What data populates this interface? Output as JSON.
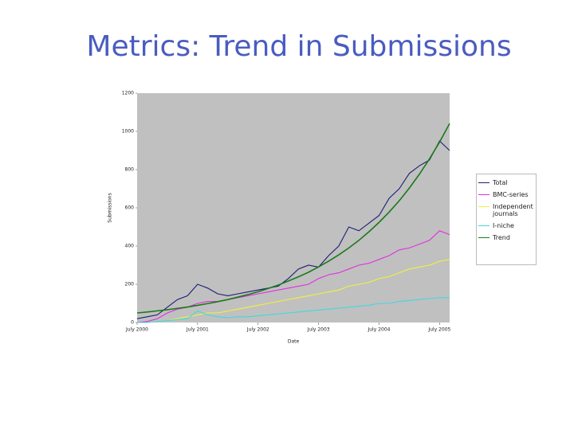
{
  "title": "Metrics: Trend in Submissions",
  "chart_data": {
    "type": "line",
    "x_label": "Date",
    "y_label": "Submissions",
    "x": [
      "2000-07",
      "2000-09",
      "2000-11",
      "2001-01",
      "2001-03",
      "2001-05",
      "2001-07",
      "2001-09",
      "2001-11",
      "2002-01",
      "2002-03",
      "2002-05",
      "2002-07",
      "2002-09",
      "2002-11",
      "2003-01",
      "2003-03",
      "2003-05",
      "2003-07",
      "2003-09",
      "2003-11",
      "2004-01",
      "2004-03",
      "2004-05",
      "2004-07",
      "2004-09",
      "2004-11",
      "2005-01",
      "2005-03",
      "2005-05",
      "2005-07",
      "2005-09"
    ],
    "series": [
      {
        "name": "Total",
        "color": "#1c1c78",
        "values": [
          20,
          30,
          40,
          80,
          120,
          140,
          200,
          180,
          150,
          140,
          150,
          160,
          170,
          180,
          190,
          230,
          280,
          300,
          290,
          350,
          400,
          500,
          480,
          520,
          560,
          650,
          700,
          780,
          820,
          850,
          950,
          900
        ]
      },
      {
        "name": "BMC-series",
        "color": "#e030e0",
        "values": [
          0,
          5,
          20,
          50,
          70,
          80,
          100,
          110,
          110,
          120,
          130,
          140,
          150,
          160,
          170,
          180,
          190,
          200,
          230,
          250,
          260,
          280,
          300,
          310,
          330,
          350,
          380,
          390,
          410,
          430,
          480,
          460
        ]
      },
      {
        "name": "Independent journals",
        "color": "#f0f040",
        "values": [
          0,
          0,
          5,
          10,
          20,
          30,
          40,
          50,
          50,
          60,
          70,
          80,
          90,
          100,
          110,
          120,
          130,
          140,
          150,
          160,
          170,
          190,
          200,
          210,
          230,
          240,
          260,
          280,
          290,
          300,
          320,
          330
        ]
      },
      {
        "name": "I-niche",
        "color": "#40d8e0",
        "values": [
          0,
          0,
          5,
          10,
          15,
          20,
          60,
          40,
          30,
          25,
          30,
          30,
          35,
          40,
          45,
          50,
          55,
          60,
          65,
          70,
          75,
          80,
          85,
          90,
          100,
          100,
          110,
          115,
          120,
          125,
          130,
          130
        ]
      },
      {
        "name": "Trend",
        "color": "#1a7a1a",
        "values": [
          50,
          55,
          61,
          67,
          74,
          81,
          90,
          99,
          109,
          120,
          133,
          146,
          161,
          178,
          196,
          217,
          239,
          263,
          291,
          321,
          354,
          390,
          430,
          475,
          524,
          578,
          637,
          703,
          776,
          856,
          944,
          1041
        ]
      }
    ],
    "xlim": [
      "2000-07",
      "2005-09"
    ],
    "xticks": [
      {
        "value": "2000-07",
        "label": "July 2000"
      },
      {
        "value": "2001-07",
        "label": "July 2001"
      },
      {
        "value": "2002-07",
        "label": "July 2002"
      },
      {
        "value": "2003-07",
        "label": "July 2003"
      },
      {
        "value": "2004-07",
        "label": "July 2004"
      },
      {
        "value": "2005-07",
        "label": "July 2005"
      }
    ],
    "ylim": [
      0,
      1200
    ],
    "yticks": [
      0,
      200,
      400,
      600,
      800,
      1000,
      1200
    ],
    "plot_background": "#c0c0c0"
  }
}
